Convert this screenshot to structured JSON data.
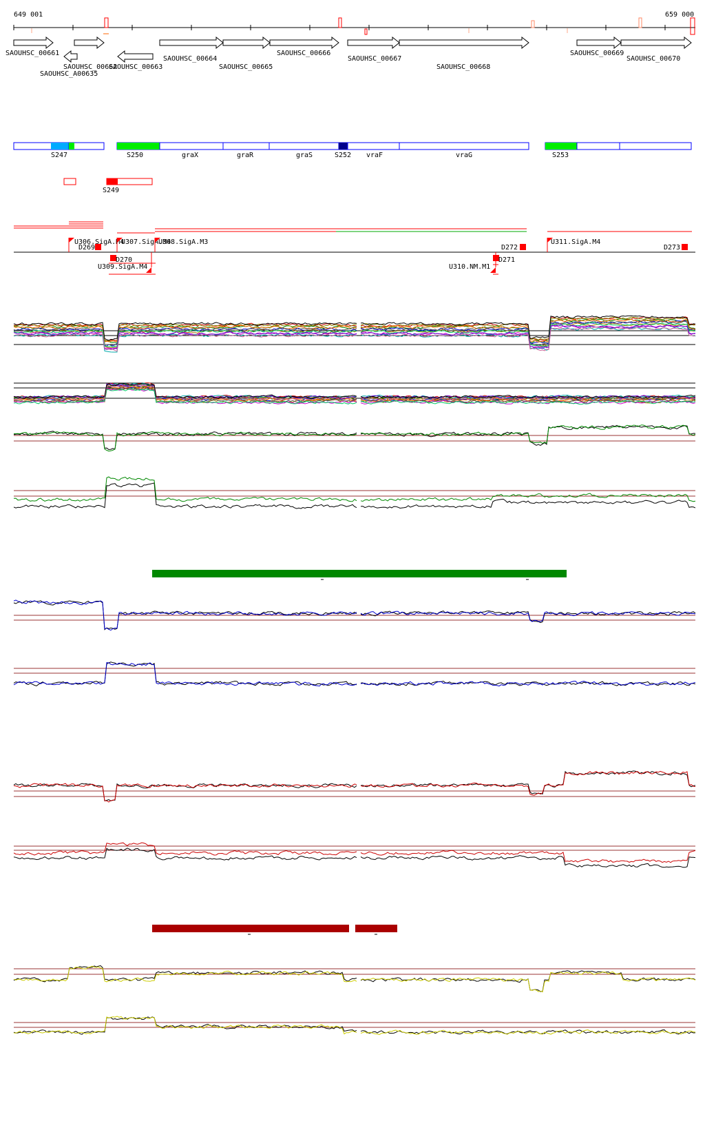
{
  "coords": {
    "start": "649 001",
    "end": "659 000"
  },
  "genes": [
    {
      "label": "SAOUHSC_00661",
      "dir": "right"
    },
    {
      "label": "SAOUHSC_A00635",
      "dir": "left"
    },
    {
      "label": "SAOUHSC_00662",
      "dir": "right"
    },
    {
      "label": "SAOUHSC_00663",
      "dir": "left"
    },
    {
      "label": "SAOUHSC_00664",
      "dir": "right"
    },
    {
      "label": "SAOUHSC_00665",
      "dir": "right"
    },
    {
      "label": "SAOUHSC_00666",
      "dir": "right"
    },
    {
      "label": "SAOUHSC_00667",
      "dir": "right"
    },
    {
      "label": "SAOUHSC_00668",
      "dir": "right"
    },
    {
      "label": "SAOUHSC_00669",
      "dir": "right"
    },
    {
      "label": "SAOUHSC_00670",
      "dir": "right"
    }
  ],
  "segments_top": [
    {
      "label": "S247",
      "color": "#00aaff"
    },
    {
      "label": "S250",
      "color": "#00ee00"
    },
    {
      "label": "graX",
      "color": ""
    },
    {
      "label": "graR",
      "color": ""
    },
    {
      "label": "graS",
      "color": ""
    },
    {
      "label": "S252",
      "color": "#00008b"
    },
    {
      "label": "vraF",
      "color": ""
    },
    {
      "label": "vraG",
      "color": ""
    },
    {
      "label": "S253",
      "color": "#00ee00"
    }
  ],
  "segments_antisense": [
    {
      "label": "S249",
      "color": "#ff0000"
    }
  ],
  "upshifts": [
    {
      "label": "U306.SigA.M4"
    },
    {
      "label": "U307.SigA.M4"
    },
    {
      "label": "U308.SigA.M3"
    },
    {
      "label": "U311.SigA.M4"
    },
    {
      "label": "U309.SigA.M4"
    },
    {
      "label": "U310.NM.M1"
    }
  ],
  "downshifts": [
    {
      "label": "D269"
    },
    {
      "label": "D270"
    },
    {
      "label": "D271"
    },
    {
      "label": "D272"
    },
    {
      "label": "D273"
    }
  ],
  "colors": {
    "gene_outline": "#000000",
    "segment_outline": "#0000ff",
    "shift_red": "#ff0000",
    "green_bar": "#008800",
    "darkred_bar": "#aa0000",
    "profile_green": "#008800",
    "profile_blue": "#0000cc",
    "profile_red": "#cc0000",
    "profile_yellow": "#cccc00"
  }
}
